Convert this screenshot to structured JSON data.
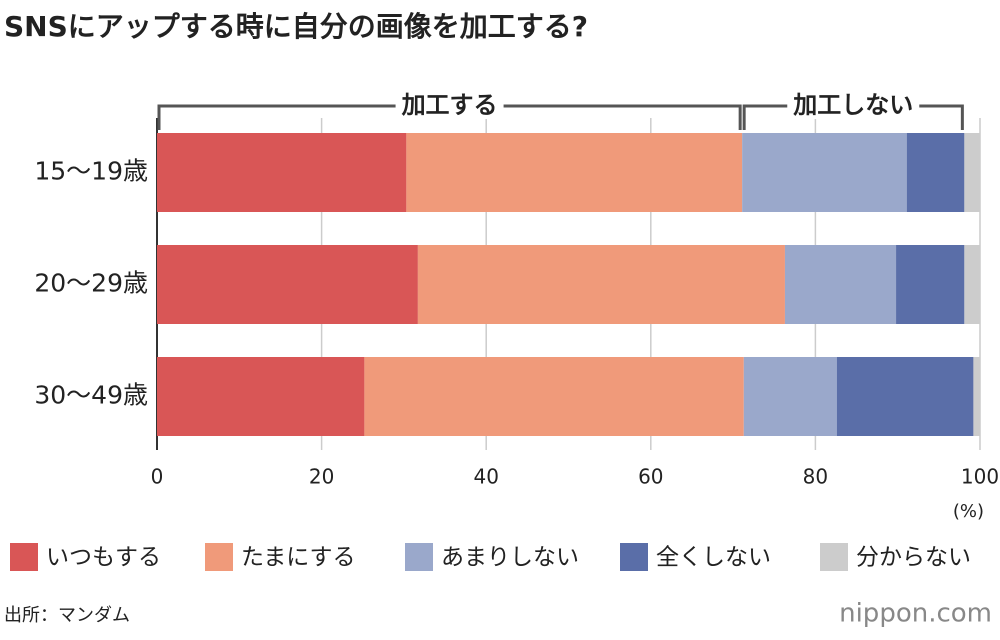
{
  "chart_data": {
    "type": "stacked-bar-horizontal",
    "title": "SNSにアップする時に自分の画像を加工する?",
    "categories": [
      "15〜19歳",
      "20〜29歳",
      "30〜49歳"
    ],
    "series": [
      {
        "name": "いつもする",
        "color": "#d95656",
        "values": [
          30.3,
          31.7,
          25.2
        ]
      },
      {
        "name": "たまにする",
        "color": "#f09a7a",
        "values": [
          40.8,
          44.6,
          46.1
        ]
      },
      {
        "name": "あまりしない",
        "color": "#9aa8cb",
        "values": [
          20.0,
          13.5,
          11.3
        ]
      },
      {
        "name": "全くしない",
        "color": "#5a6ea8",
        "values": [
          7.0,
          8.3,
          16.6
        ]
      },
      {
        "name": "分からない",
        "color": "#cccccc",
        "values": [
          1.9,
          1.9,
          0.8
        ]
      }
    ],
    "annotations": [
      "加工する",
      "加工しない"
    ],
    "xlim": [
      0,
      100
    ],
    "xticks": [
      0,
      20,
      40,
      60,
      80,
      100
    ],
    "x_unit": "(%)",
    "grid": true,
    "source": "出所：マンダム",
    "logo": "nippon.com"
  }
}
